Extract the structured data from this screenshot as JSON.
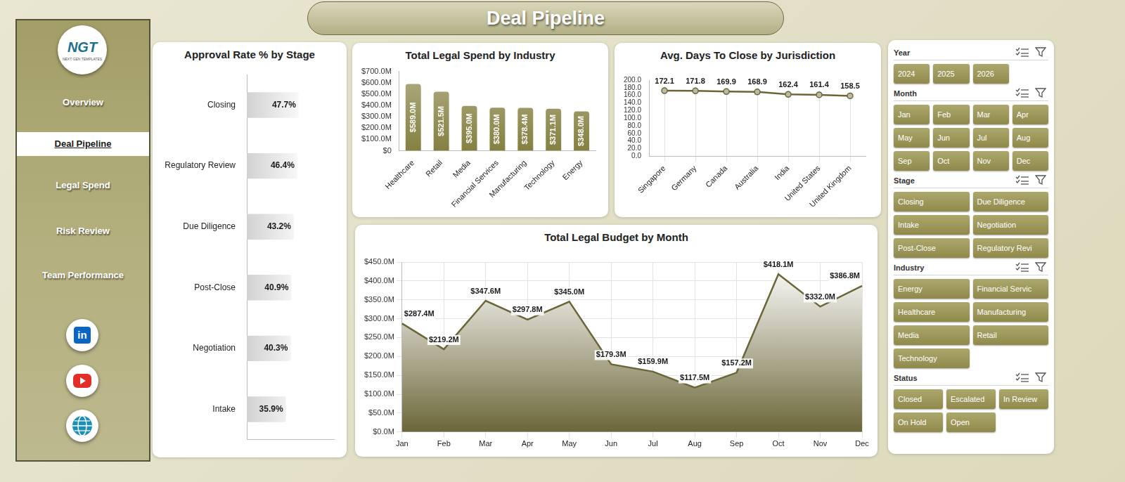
{
  "header": {
    "title": "Deal Pipeline"
  },
  "logo": {
    "title": "NGT",
    "subtitle": "NEXT GEN TEMPLATES"
  },
  "nav": {
    "items": [
      "Overview",
      "Deal Pipeline",
      "Legal Spend",
      "Risk Review",
      "Team Performance"
    ],
    "active": "Deal Pipeline"
  },
  "social": {
    "linkedin": "in"
  },
  "filters": [
    {
      "title": "Year",
      "options": [
        "2024",
        "2025",
        "2026"
      ]
    },
    {
      "title": "Month",
      "options": [
        "Jan",
        "Feb",
        "Mar",
        "Apr",
        "May",
        "Jun",
        "Jul",
        "Aug",
        "Sep",
        "Oct",
        "Nov",
        "Dec"
      ]
    },
    {
      "title": "Stage",
      "options": [
        "Closing",
        "Due Diligence",
        "Intake",
        "Negotiation",
        "Post-Close",
        "Regulatory Revi"
      ]
    },
    {
      "title": "Industry",
      "options": [
        "Energy",
        "Financial Servic",
        "Healthcare",
        "Manufacturing",
        "Media",
        "Retail",
        "Technology"
      ]
    },
    {
      "title": "Status",
      "options": [
        "Closed",
        "Escalated",
        "In Review",
        "On Hold",
        "Open"
      ]
    }
  ],
  "chart_data": [
    {
      "type": "bar",
      "orientation": "horizontal",
      "title": "Approval Rate % by Stage",
      "categories": [
        "Closing",
        "Regulatory Review",
        "Due Diligence",
        "Post-Close",
        "Negotiation",
        "Intake"
      ],
      "values": [
        47.7,
        46.4,
        43.2,
        40.9,
        40.3,
        35.9
      ],
      "value_labels": [
        "47.7%",
        "46.4%",
        "43.2%",
        "40.9%",
        "40.3%",
        "35.9%"
      ],
      "data_labels": true,
      "color": "#d2d2d2",
      "xlim": [
        0,
        80
      ],
      "tick_labels": "y",
      "grid": false
    },
    {
      "type": "bar",
      "title": "Total Legal Spend by Industry",
      "categories": [
        "Healthcare",
        "Retail",
        "Media",
        "Financial Services",
        "Manufacturing",
        "Technology",
        "Energy"
      ],
      "values": [
        589.0,
        521.5,
        395.0,
        380.0,
        378.4,
        371.1,
        348.0
      ],
      "value_labels": [
        "$589.0M",
        "$521.5M",
        "$395.0M",
        "$380.0M",
        "$378.4M",
        "$371.1M",
        "$348.0M"
      ],
      "data_labels": true,
      "color": "#858040",
      "ylim": [
        0,
        700
      ],
      "yticks": [
        {
          "value": 0,
          "label": "$0"
        },
        {
          "value": 100,
          "label": "$100.0M"
        },
        {
          "value": 200,
          "label": "$200.0M"
        },
        {
          "value": 300,
          "label": "$300.0M"
        },
        {
          "value": 400,
          "label": "$400.0M"
        },
        {
          "value": 500,
          "label": "$500.0M"
        },
        {
          "value": 600,
          "label": "$600.0M"
        },
        {
          "value": 700,
          "label": "$700.0M"
        }
      ],
      "grid": false
    },
    {
      "type": "line",
      "title": "Avg. Days To Close by Jurisdiction",
      "categories": [
        "Singapore",
        "Germany",
        "Canada",
        "Australia",
        "India",
        "United States",
        "United Kingdom"
      ],
      "values": [
        172.1,
        171.8,
        169.9,
        168.9,
        162.4,
        161.4,
        158.5
      ],
      "data_labels": true,
      "color": "#6b6638",
      "marker": "circle",
      "ylim": [
        0,
        200
      ],
      "yticks": [
        {
          "value": 0,
          "label": "0.0"
        },
        {
          "value": 20,
          "label": "20.0"
        },
        {
          "value": 40,
          "label": "40.0"
        },
        {
          "value": 60,
          "label": "60.0"
        },
        {
          "value": 80,
          "label": "80.0"
        },
        {
          "value": 100,
          "label": "100.0"
        },
        {
          "value": 120,
          "label": "120.0"
        },
        {
          "value": 140,
          "label": "140.0"
        },
        {
          "value": 160,
          "label": "160.0"
        },
        {
          "value": 180,
          "label": "180.0"
        },
        {
          "value": 200,
          "label": "200.0"
        }
      ],
      "grid": "x"
    },
    {
      "type": "area",
      "title": "Total Legal Budget by Month",
      "categories": [
        "Jan",
        "Feb",
        "Mar",
        "Apr",
        "May",
        "Jun",
        "Jul",
        "Aug",
        "Sep",
        "Oct",
        "Nov",
        "Dec"
      ],
      "values": [
        287.4,
        219.2,
        347.6,
        297.8,
        345.0,
        179.3,
        159.9,
        117.5,
        157.2,
        418.1,
        332.0,
        386.8
      ],
      "value_labels": [
        "$287.4M",
        "$219.2M",
        "$347.6M",
        "$297.8M",
        "$345.0M",
        "$179.3M",
        "$159.9M",
        "$117.5M",
        "$157.2M",
        "$418.1M",
        "$332.0M",
        "$386.8M"
      ],
      "data_labels": true,
      "color": "#6b6638",
      "ylim": [
        0,
        450
      ],
      "yticks": [
        {
          "value": 0,
          "label": "$0.0M"
        },
        {
          "value": 50,
          "label": "$50.0M"
        },
        {
          "value": 100,
          "label": "$100.0M"
        },
        {
          "value": 150,
          "label": "$150.0M"
        },
        {
          "value": 200,
          "label": "$200.0M"
        },
        {
          "value": 250,
          "label": "$250.0M"
        },
        {
          "value": 300,
          "label": "$300.0M"
        },
        {
          "value": 350,
          "label": "$350.0M"
        },
        {
          "value": 400,
          "label": "$400.0M"
        },
        {
          "value": 450,
          "label": "$450.0M"
        }
      ],
      "grid": true
    }
  ]
}
